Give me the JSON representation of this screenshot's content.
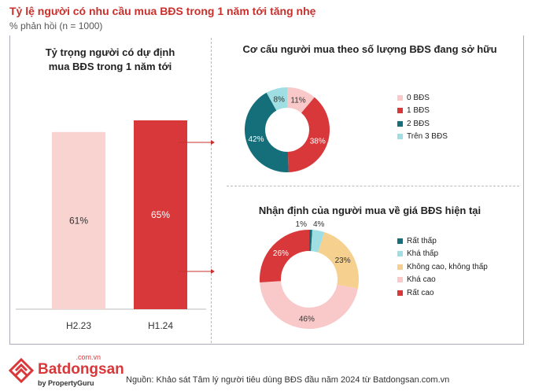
{
  "title": "Tỷ lệ người có nhu cầu mua BĐS trong 1 năm tới tăng nhẹ",
  "subtitle": "% phản hồi (n = 1000)",
  "source": "Nguồn: Khảo sát Tâm lý người tiêu dùng BĐS đầu năm 2024 từ Batdongsan.com.vn",
  "logo": {
    "brand": "Batdongsan",
    "domain": ".com.vn",
    "tagline": "by PropertyGuru"
  },
  "chart_data": [
    {
      "type": "bar",
      "title_line1": "Tỷ trọng người có dự định",
      "title_line2": "mua BĐS trong 1 năm tới",
      "categories": [
        "H2.23",
        "H1.24"
      ],
      "values": [
        61,
        65
      ],
      "labels": [
        "61%",
        "65%"
      ],
      "colors": [
        "#f9d3d0",
        "#d8383a"
      ],
      "ylim": [
        0,
        100
      ]
    },
    {
      "type": "pie",
      "title": "Cơ cấu người mua theo số lượng BĐS đang sở hữu",
      "categories": [
        "0 BĐS",
        "1 BĐS",
        "2 BĐS",
        "Trên 3 BĐS"
      ],
      "values": [
        11,
        38,
        42,
        8
      ],
      "labels": [
        "11%",
        "38%",
        "42%",
        "8%"
      ],
      "colors": [
        "#f9c9c9",
        "#d8383a",
        "#146f7a",
        "#9fdfe3"
      ]
    },
    {
      "type": "pie",
      "title": "Nhận định của người mua về giá BĐS hiện tại",
      "categories": [
        "Rất thấp",
        "Khá thấp",
        "Không cao, không thấp",
        "Khá cao",
        "Rất cao"
      ],
      "values": [
        1,
        4,
        23,
        46,
        26
      ],
      "labels": [
        "1%",
        "4%",
        "23%",
        "46%",
        "26%"
      ],
      "colors": [
        "#146f7a",
        "#9fdfe3",
        "#f5d08f",
        "#f9c9c9",
        "#d8383a"
      ]
    }
  ]
}
